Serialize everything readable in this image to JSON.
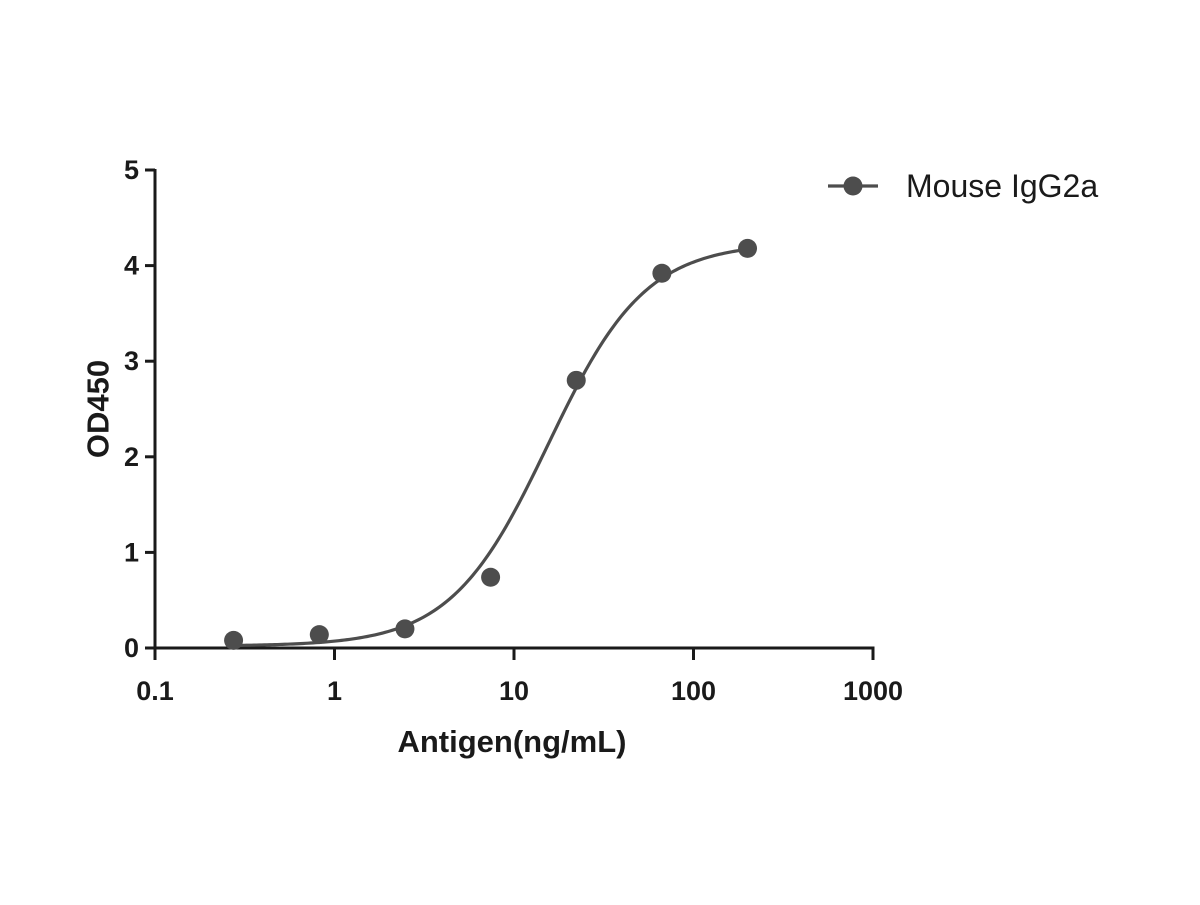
{
  "chart_data": {
    "type": "scatter",
    "xlabel": "Antigen(ng/mL)",
    "ylabel": "OD450",
    "xscale": "log",
    "xlim": [
      0.1,
      1000
    ],
    "ylim": [
      0,
      5
    ],
    "x_ticks": [
      0.1,
      1,
      10,
      100,
      1000
    ],
    "x_tick_labels": [
      "0.1",
      "1",
      "10",
      "100",
      "1000"
    ],
    "y_ticks": [
      0,
      1,
      2,
      3,
      4,
      5
    ],
    "y_tick_labels": [
      "0",
      "1",
      "2",
      "3",
      "4",
      "5"
    ],
    "grid": false,
    "legend_position": "top-right",
    "series": [
      {
        "name": "Mouse IgG2a",
        "color": "#4d4d4d",
        "marker": "circle",
        "x": [
          0.274,
          0.823,
          2.469,
          7.407,
          22.22,
          66.67,
          200
        ],
        "y": [
          0.08,
          0.14,
          0.2,
          0.74,
          2.8,
          3.92,
          4.18
        ],
        "fit": {
          "model": "4PL",
          "bottom": 0.02,
          "top": 4.24,
          "ec50": 15.5,
          "hill": 1.6,
          "x_range": [
            0.274,
            200
          ]
        }
      }
    ]
  }
}
